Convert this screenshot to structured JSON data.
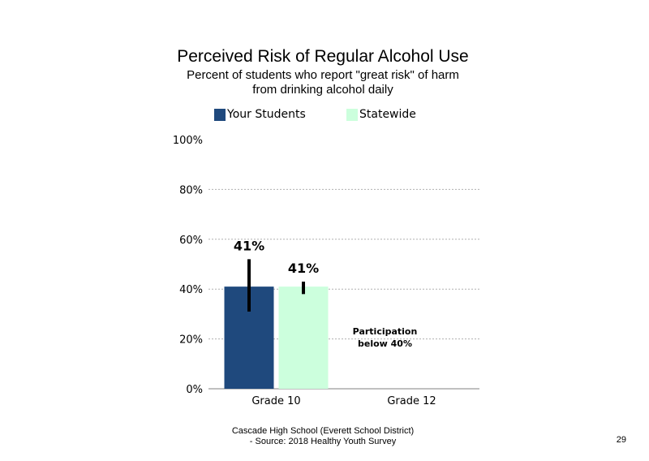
{
  "chart_data": {
    "type": "bar",
    "title": "Perceived Risk of Regular Alcohol Use",
    "subtitle": [
      "Percent of students  who report \"great risk\" of harm",
      "from drinking alcohol daily"
    ],
    "categories": [
      "Grade 10",
      "Grade 12"
    ],
    "series": [
      {
        "name": "Your Students",
        "color": "#1f497d",
        "values": [
          41,
          null
        ],
        "labels": [
          "41%",
          null
        ],
        "error_low": [
          31,
          null
        ],
        "error_high": [
          52,
          null
        ]
      },
      {
        "name": "Statewide",
        "color": "#ccffdd",
        "values": [
          41,
          null
        ],
        "labels": [
          "41%",
          null
        ],
        "error_low": [
          38,
          null
        ],
        "error_high": [
          43,
          null
        ]
      }
    ],
    "ylim": [
      0,
      100
    ],
    "yticks": [
      0,
      20,
      40,
      60,
      80,
      100
    ],
    "ytick_labels": [
      "0%",
      "20%",
      "40%",
      "60%",
      "80%",
      "100%"
    ],
    "grid": true,
    "legend_position": "top",
    "annotations": [
      {
        "category": "Grade 12",
        "lines": [
          "Participation",
          "below 40%"
        ]
      }
    ]
  },
  "footer": {
    "line1": "Cascade High School (Everett School District)",
    "line2": "- Source: 2018 Healthy  Youth Survey"
  },
  "page_number": "29"
}
